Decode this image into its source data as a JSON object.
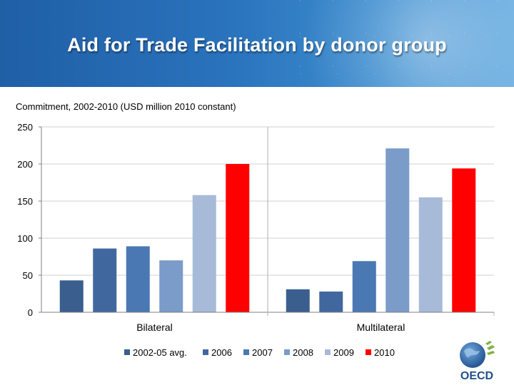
{
  "header": {
    "title": "Aid for Trade Facilitation by donor group"
  },
  "colors": {
    "banner": "#2a73bd",
    "series": [
      "#3a5f8f",
      "#41689e",
      "#4a78b3",
      "#7b9bc9",
      "#a7bad8",
      "#ff0000"
    ]
  },
  "chart_data": {
    "type": "bar",
    "title": "Commitment, 2002-2010 (USD million 2010 constant)",
    "categories": [
      "Bilateral",
      "Multilateral"
    ],
    "series": [
      {
        "name": "2002-05 avg.",
        "values": [
          43,
          31
        ]
      },
      {
        "name": "2006",
        "values": [
          86,
          28
        ]
      },
      {
        "name": "2007",
        "values": [
          89,
          69
        ]
      },
      {
        "name": "2008",
        "values": [
          70,
          221
        ]
      },
      {
        "name": "2009",
        "values": [
          158,
          155
        ]
      },
      {
        "name": "2010",
        "values": [
          200,
          194
        ]
      }
    ],
    "ylim": [
      0,
      250
    ],
    "yticks": [
      0,
      50,
      100,
      150,
      200,
      250
    ],
    "ytick_labels": [
      "0",
      "50",
      "100",
      "150",
      "200",
      "250"
    ],
    "grid": true,
    "legend_position": "bottom"
  },
  "logo": {
    "text": "OECD"
  }
}
